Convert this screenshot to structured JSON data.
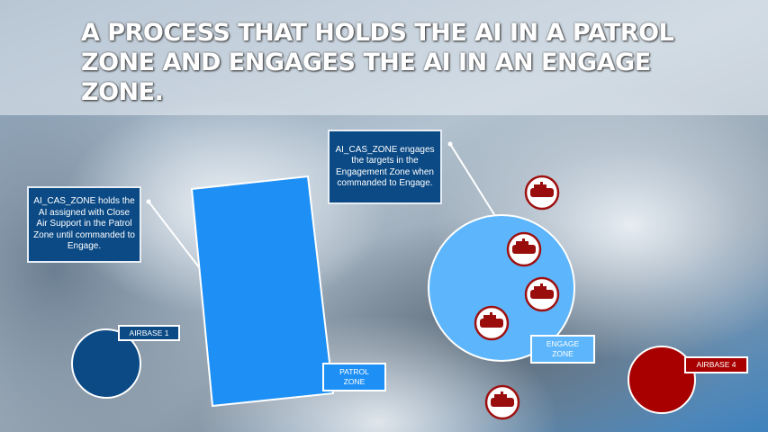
{
  "title": "A PROCESS THAT HOLDS THE AI IN A PATROL ZONE AND ENGAGES THE AI IN AN ENGAGE ZONE.",
  "callouts": {
    "patrol": "AI_CAS_ZONE holds the AI assigned with Close Air Support in the Patrol Zone until commanded to Engage.",
    "engage": "AI_CAS_ZONE engages the targets in the Engagement Zone when commanded to Engage."
  },
  "labels": {
    "airbase1": "AIRBASE 1",
    "airbase4": "AIRBASE 4",
    "patrol_zone": "PATROL ZONE",
    "engage_zone": "ENGAGE ZONE"
  },
  "colors": {
    "patrol_zone": "#1e90f5",
    "engage_zone": "#5db6fb",
    "friendly": "#0b4a85",
    "enemy": "#a80000"
  },
  "icons": [
    "tank-icon"
  ]
}
